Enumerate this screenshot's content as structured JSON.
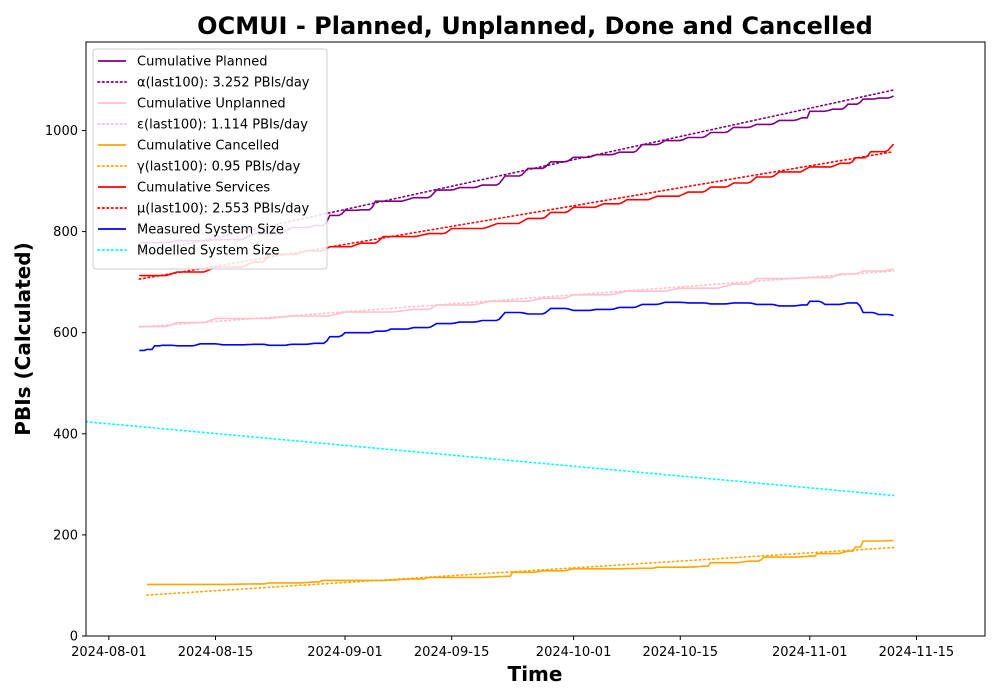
{
  "chart_data": {
    "type": "line",
    "title": "OCMUI - Planned, Unplanned, Done  and Cancelled",
    "xlabel": "Time",
    "ylabel": "PBIs (Calculated)",
    "xlim": [
      "2024-07-29",
      "2024-11-24"
    ],
    "ylim": [
      0,
      1175
    ],
    "xticks": [
      "2024-08-01",
      "2024-08-15",
      "2024-09-01",
      "2024-09-15",
      "2024-10-01",
      "2024-10-15",
      "2024-11-01",
      "2024-11-15"
    ],
    "yticks": [
      0,
      200,
      400,
      600,
      800,
      1000
    ],
    "grid": false,
    "legend_position": "upper-left",
    "series": [
      {
        "name": "Cumulative Planned",
        "color": "#800080",
        "style": "solid",
        "points": [
          [
            "2024-08-05",
            778
          ],
          [
            "2024-08-10",
            782
          ],
          [
            "2024-08-15",
            784
          ],
          [
            "2024-08-20",
            796
          ],
          [
            "2024-08-25",
            808
          ],
          [
            "2024-08-28",
            812
          ],
          [
            "2024-08-30",
            832
          ],
          [
            "2024-09-01",
            842
          ],
          [
            "2024-09-03",
            843
          ],
          [
            "2024-09-05",
            860
          ],
          [
            "2024-09-10",
            867
          ],
          [
            "2024-09-13",
            882
          ],
          [
            "2024-09-16",
            887
          ],
          [
            "2024-09-19",
            892
          ],
          [
            "2024-09-22",
            910
          ],
          [
            "2024-09-25",
            925
          ],
          [
            "2024-09-28",
            938
          ],
          [
            "2024-10-01",
            947
          ],
          [
            "2024-10-04",
            952
          ],
          [
            "2024-10-07",
            957
          ],
          [
            "2024-10-10",
            972
          ],
          [
            "2024-10-13",
            980
          ],
          [
            "2024-10-16",
            986
          ],
          [
            "2024-10-19",
            996
          ],
          [
            "2024-10-22",
            1006
          ],
          [
            "2024-10-25",
            1012
          ],
          [
            "2024-10-28",
            1020
          ],
          [
            "2024-10-31",
            1025
          ],
          [
            "2024-11-01",
            1038
          ],
          [
            "2024-11-04",
            1042
          ],
          [
            "2024-11-06",
            1052
          ],
          [
            "2024-11-08",
            1062
          ],
          [
            "2024-11-10",
            1064
          ],
          [
            "2024-11-12",
            1068
          ]
        ]
      },
      {
        "name": "α(last100): 3.252 PBIs/day",
        "color": "#800080",
        "style": "dotted",
        "points": [
          [
            "2024-08-05",
            755
          ],
          [
            "2024-11-12",
            1080
          ]
        ]
      },
      {
        "name": "Cumulative Unplanned",
        "color": "#ffc0cb",
        "style": "solid",
        "points": [
          [
            "2024-08-05",
            612
          ],
          [
            "2024-08-10",
            620
          ],
          [
            "2024-08-15",
            628
          ],
          [
            "2024-08-25",
            633
          ],
          [
            "2024-09-01",
            641
          ],
          [
            "2024-09-10",
            646
          ],
          [
            "2024-09-13",
            655
          ],
          [
            "2024-09-20",
            662
          ],
          [
            "2024-09-27",
            668
          ],
          [
            "2024-10-01",
            675
          ],
          [
            "2024-10-08",
            682
          ],
          [
            "2024-10-15",
            688
          ],
          [
            "2024-10-22",
            696
          ],
          [
            "2024-10-25",
            707
          ],
          [
            "2024-11-01",
            709
          ],
          [
            "2024-11-05",
            716
          ],
          [
            "2024-11-08",
            722
          ],
          [
            "2024-11-12",
            726
          ]
        ]
      },
      {
        "name": "ε(last100): 1.114 PBIs/day",
        "color": "#ffc0cb",
        "style": "dotted",
        "points": [
          [
            "2024-08-05",
            611
          ],
          [
            "2024-11-12",
            722
          ]
        ]
      },
      {
        "name": "Cumulative Cancelled",
        "color": "#ffa500",
        "style": "solid",
        "points": [
          [
            "2024-08-06",
            102
          ],
          [
            "2024-08-20",
            103
          ],
          [
            "2024-08-22",
            105
          ],
          [
            "2024-08-28",
            107
          ],
          [
            "2024-08-29",
            110
          ],
          [
            "2024-09-10",
            113
          ],
          [
            "2024-09-12",
            116
          ],
          [
            "2024-09-22",
            118
          ],
          [
            "2024-09-23",
            126
          ],
          [
            "2024-09-27",
            129
          ],
          [
            "2024-10-01",
            133
          ],
          [
            "2024-10-10",
            134
          ],
          [
            "2024-10-12",
            136
          ],
          [
            "2024-10-18",
            138
          ],
          [
            "2024-10-19",
            145
          ],
          [
            "2024-10-24",
            148
          ],
          [
            "2024-10-26",
            156
          ],
          [
            "2024-11-01",
            158
          ],
          [
            "2024-11-02",
            163
          ],
          [
            "2024-11-06",
            168
          ],
          [
            "2024-11-07",
            176
          ],
          [
            "2024-11-08",
            188
          ],
          [
            "2024-11-12",
            189
          ]
        ]
      },
      {
        "name": "γ(last100): 0.95 PBIs/day",
        "color": "#ffa500",
        "style": "dotted",
        "points": [
          [
            "2024-08-06",
            81
          ],
          [
            "2024-11-12",
            175
          ]
        ]
      },
      {
        "name": "Cumulative Services",
        "color": "#ff0000",
        "style": "solid",
        "points": [
          [
            "2024-08-05",
            713
          ],
          [
            "2024-08-10",
            720
          ],
          [
            "2024-08-15",
            730
          ],
          [
            "2024-08-20",
            740
          ],
          [
            "2024-08-22",
            755
          ],
          [
            "2024-08-27",
            762
          ],
          [
            "2024-08-30",
            770
          ],
          [
            "2024-09-03",
            777
          ],
          [
            "2024-09-06",
            790
          ],
          [
            "2024-09-12",
            796
          ],
          [
            "2024-09-15",
            806
          ],
          [
            "2024-09-21",
            816
          ],
          [
            "2024-09-25",
            826
          ],
          [
            "2024-09-28",
            838
          ],
          [
            "2024-10-01",
            848
          ],
          [
            "2024-10-05",
            855
          ],
          [
            "2024-10-08",
            863
          ],
          [
            "2024-10-12",
            870
          ],
          [
            "2024-10-16",
            878
          ],
          [
            "2024-10-19",
            888
          ],
          [
            "2024-10-22",
            896
          ],
          [
            "2024-10-25",
            908
          ],
          [
            "2024-10-28",
            918
          ],
          [
            "2024-11-01",
            928
          ],
          [
            "2024-11-05",
            935
          ],
          [
            "2024-11-07",
            946
          ],
          [
            "2024-11-09",
            958
          ],
          [
            "2024-11-12",
            973
          ]
        ]
      },
      {
        "name": "μ(last100): 2.553 PBIs/day",
        "color": "#ff0000",
        "style": "dotted",
        "points": [
          [
            "2024-08-05",
            706
          ],
          [
            "2024-11-12",
            958
          ]
        ]
      },
      {
        "name": "Measured System Size",
        "color": "#0000ff",
        "style": "solid",
        "points": [
          [
            "2024-08-05",
            565
          ],
          [
            "2024-08-06",
            567
          ],
          [
            "2024-08-07",
            574
          ],
          [
            "2024-08-08",
            575
          ],
          [
            "2024-08-10",
            574
          ],
          [
            "2024-08-13",
            578
          ],
          [
            "2024-08-16",
            576
          ],
          [
            "2024-08-20",
            577
          ],
          [
            "2024-08-22",
            575
          ],
          [
            "2024-08-25",
            577
          ],
          [
            "2024-08-28",
            579
          ],
          [
            "2024-08-30",
            592
          ],
          [
            "2024-09-01",
            600
          ],
          [
            "2024-09-03",
            600
          ],
          [
            "2024-09-05",
            603
          ],
          [
            "2024-09-07",
            607
          ],
          [
            "2024-09-10",
            610
          ],
          [
            "2024-09-13",
            618
          ],
          [
            "2024-09-16",
            621
          ],
          [
            "2024-09-19",
            624
          ],
          [
            "2024-09-22",
            640
          ],
          [
            "2024-09-25",
            637
          ],
          [
            "2024-09-28",
            648
          ],
          [
            "2024-10-01",
            644
          ],
          [
            "2024-10-04",
            646
          ],
          [
            "2024-10-07",
            650
          ],
          [
            "2024-10-10",
            656
          ],
          [
            "2024-10-13",
            660
          ],
          [
            "2024-10-16",
            659
          ],
          [
            "2024-10-19",
            657
          ],
          [
            "2024-10-22",
            659
          ],
          [
            "2024-10-25",
            656
          ],
          [
            "2024-10-28",
            653
          ],
          [
            "2024-10-31",
            655
          ],
          [
            "2024-11-01",
            662
          ],
          [
            "2024-11-03",
            656
          ],
          [
            "2024-11-06",
            659
          ],
          [
            "2024-11-08",
            640
          ],
          [
            "2024-11-10",
            636
          ],
          [
            "2024-11-12",
            634
          ]
        ]
      },
      {
        "name": "Modelled System Size",
        "color": "#00ffff",
        "style": "dotted",
        "points": [
          [
            "2024-07-29",
            424
          ],
          [
            "2024-11-12",
            278
          ]
        ]
      }
    ]
  }
}
